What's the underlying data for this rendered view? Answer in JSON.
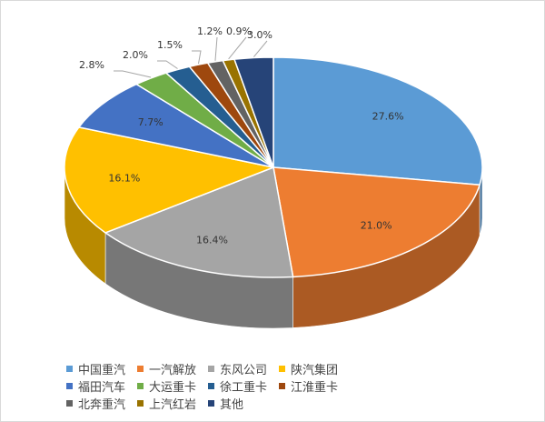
{
  "chart_data": {
    "type": "pie",
    "style": "3d",
    "categories": [
      "中国重汽",
      "一汽解放",
      "东风公司",
      "陕汽集团",
      "福田汽车",
      "大运重卡",
      "徐工重卡",
      "江淮重卡",
      "北奔重汽",
      "上汽红岩",
      "其他"
    ],
    "values": [
      27.6,
      21.0,
      16.4,
      16.1,
      7.7,
      2.8,
      2.0,
      1.5,
      1.2,
      0.9,
      3.0
    ],
    "labels": [
      "27.6%",
      "21.0%",
      "16.4%",
      "16.1%",
      "7.7%",
      "2.8%",
      "2.0%",
      "1.5%",
      "1.2%",
      "0.9%",
      "3.0%"
    ],
    "colors": [
      "#5B9BD5",
      "#ED7D31",
      "#A5A5A5",
      "#FFC000",
      "#4472C4",
      "#70AD47",
      "#255E91",
      "#9E480E",
      "#636363",
      "#997300",
      "#264478"
    ],
    "legend_position": "bottom"
  }
}
